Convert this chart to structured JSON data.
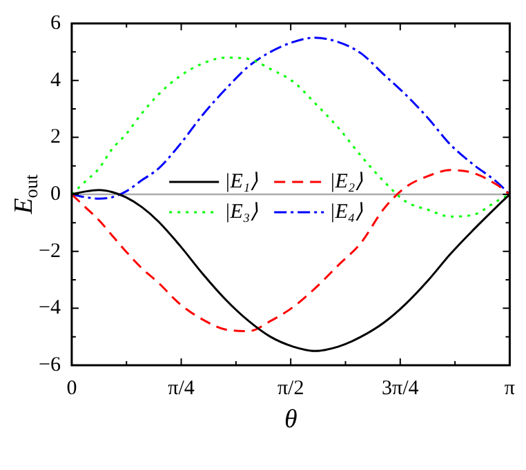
{
  "chart_data": {
    "type": "line",
    "xlabel": "θ",
    "ylabel": "E$_{out}$",
    "x": [
      0,
      0.097,
      0.194,
      0.291,
      0.388,
      0.504,
      0.621,
      0.776,
      0.941,
      1.105,
      1.27,
      1.425,
      1.59,
      1.745,
      1.91,
      2.075,
      2.24,
      2.395,
      2.56,
      2.715,
      2.88,
      3.045,
      3.1416
    ],
    "series": [
      {
        "name": "|E₁⟩",
        "color": "#000000",
        "line_style": "solid",
        "values": [
          0,
          0.1,
          0.15,
          0.08,
          -0.1,
          -0.45,
          -0.95,
          -1.8,
          -2.8,
          -3.7,
          -4.45,
          -5.0,
          -5.35,
          -5.5,
          -5.35,
          -5.0,
          -4.5,
          -3.85,
          -3.0,
          -2.1,
          -1.25,
          -0.45,
          0
        ]
      },
      {
        "name": "|E₂⟩",
        "color": "#ff0000",
        "line_style": "dashed",
        "values": [
          0,
          -0.45,
          -0.9,
          -1.45,
          -2.0,
          -2.6,
          -3.1,
          -3.85,
          -4.4,
          -4.75,
          -4.8,
          -4.45,
          -3.95,
          -3.3,
          -2.5,
          -1.7,
          -0.5,
          0.25,
          0.65,
          0.85,
          0.75,
          0.35,
          0
        ]
      },
      {
        "name": "|E₃⟩",
        "color": "#00ff00",
        "line_style": "dotted",
        "values": [
          0,
          0.45,
          0.9,
          1.6,
          2.1,
          2.85,
          3.5,
          4.15,
          4.6,
          4.8,
          4.75,
          4.4,
          3.95,
          3.2,
          2.35,
          1.35,
          0.45,
          -0.25,
          -0.55,
          -0.78,
          -0.72,
          -0.25,
          0
        ]
      },
      {
        "name": "|E₄⟩",
        "color": "#0000ff",
        "line_style": "dashdot",
        "values": [
          0,
          -0.1,
          -0.15,
          -0.1,
          0.1,
          0.5,
          0.9,
          1.75,
          2.8,
          3.7,
          4.5,
          5.0,
          5.35,
          5.5,
          5.35,
          4.95,
          4.2,
          3.5,
          2.65,
          1.75,
          1.05,
          0.45,
          0
        ]
      }
    ],
    "xlim": [
      0,
      3.1416
    ],
    "xticks": [
      {
        "value": 0,
        "label": "0"
      },
      {
        "value": 0.7854,
        "label": "π/4"
      },
      {
        "value": 1.5708,
        "label": "π/2"
      },
      {
        "value": 2.3562,
        "label": "3π/4"
      },
      {
        "value": 3.1416,
        "label": "π"
      }
    ],
    "ylim": [
      -6,
      6
    ],
    "yticks": [
      -6,
      -4,
      -2,
      0,
      2,
      4,
      6
    ],
    "ref_lines": [
      {
        "axis": "y",
        "value": 0,
        "color": "#aaaaaa"
      }
    ],
    "grid": false,
    "legend": "center",
    "marker": "none"
  }
}
